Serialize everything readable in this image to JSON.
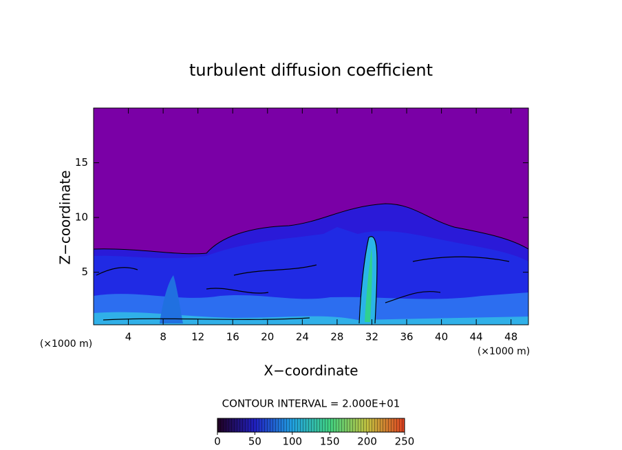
{
  "chart_data": {
    "type": "contour",
    "title": "turbulent diffusion coefficient",
    "x_label": "X−coordinate",
    "y_label": "Z−coordinate",
    "x_unit": "(×1000 m)",
    "y_unit": "(×1000 m)",
    "xlim": [
      0,
      50
    ],
    "xticks": [
      4,
      8,
      12,
      16,
      20,
      24,
      28,
      32,
      36,
      40,
      44,
      48
    ],
    "ylim": [
      0.2,
      20
    ],
    "yticks": [
      5,
      10,
      15
    ],
    "contour_label": "CONTOUR INTERVAL = 2.000E+01",
    "colorbar": {
      "range": [
        0,
        250
      ],
      "ticks": [
        0,
        50,
        100,
        150,
        200,
        250
      ],
      "colors": [
        "#200020",
        "#2020c0",
        "#20a0e0",
        "#40d080",
        "#c0c040",
        "#e04020"
      ]
    }
  }
}
